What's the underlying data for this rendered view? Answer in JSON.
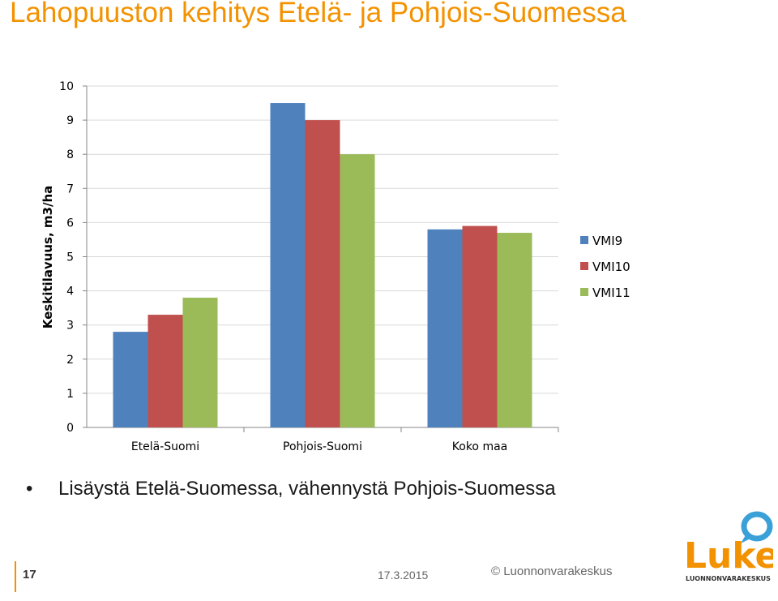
{
  "slide": {
    "title": "Lahopuuston kehitys Etelä- ja Pohjois-Suomessa",
    "bullet_symbol": "•",
    "bullet": "Lisäystä Etelä-Suomessa, vähennystä Pohjois-Suomessa",
    "page_number": "17",
    "date": "17.3.2015",
    "copyright": "© Luonnonvarakeskus",
    "logo_word": "Luke",
    "logo_subtitle": "LUONNONVARAKESKUS",
    "accent_color": "#f39200",
    "logo_bubble_color": "#3aa0d8"
  },
  "chart_data": {
    "type": "bar",
    "title": "",
    "xlabel": "",
    "ylabel": "Keskitilavuus, m3/ha",
    "ylim": [
      0,
      10
    ],
    "yticks": [
      "0",
      "1",
      "2",
      "3",
      "4",
      "5",
      "6",
      "7",
      "8",
      "9",
      "10"
    ],
    "grid": true,
    "legend_position": "right",
    "categories": [
      "Etelä-Suomi",
      "Pohjois-Suomi",
      "Koko maa"
    ],
    "series": [
      {
        "name": "VMI9",
        "color": "#4f81bd",
        "values": [
          2.8,
          9.5,
          5.8
        ]
      },
      {
        "name": "VMI10",
        "color": "#c0504d",
        "values": [
          3.3,
          9.0,
          5.9
        ]
      },
      {
        "name": "VMI11",
        "color": "#9bbb59",
        "values": [
          3.8,
          8.0,
          5.7
        ]
      }
    ]
  }
}
